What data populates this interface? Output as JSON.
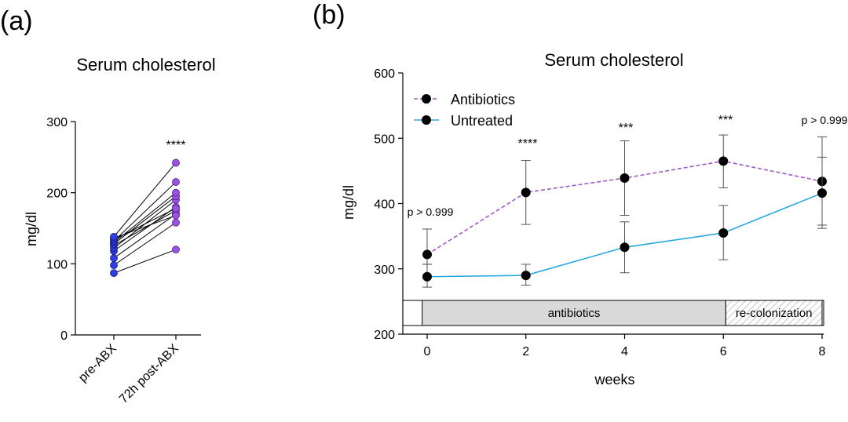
{
  "panels": [
    {
      "label": "(a)",
      "chart_data": {
        "type": "scatter",
        "title": "Serum cholesterol",
        "xlabel": "",
        "ylabel": "mg/dl",
        "categories": [
          "pre-ABX",
          "72h post-ABX"
        ],
        "ylim": [
          0,
          300
        ],
        "yticks": [
          0,
          100,
          200,
          300
        ],
        "paired_values": [
          [
            87,
            120
          ],
          [
            98,
            158
          ],
          [
            108,
            170
          ],
          [
            118,
            180
          ],
          [
            122,
            190
          ],
          [
            126,
            175
          ],
          [
            128,
            195
          ],
          [
            130,
            200
          ],
          [
            132,
            215
          ],
          [
            134,
            178
          ],
          [
            136,
            168
          ],
          [
            138,
            242
          ]
        ],
        "colors": {
          "pre": "#2f3fe0",
          "post": "#9b51e8"
        },
        "annotation": "****",
        "grid": false
      }
    },
    {
      "label": "(b)",
      "chart_data": {
        "type": "line",
        "title": "Serum cholesterol",
        "xlabel": "weeks",
        "ylabel": "mg/dl",
        "x": [
          0,
          2,
          4,
          6,
          8
        ],
        "xlim": [
          -0.4,
          8.1
        ],
        "ylim": [
          200,
          600
        ],
        "xticks": [
          0,
          2,
          4,
          6,
          8
        ],
        "yticks": [
          200,
          300,
          400,
          500,
          600
        ],
        "series": [
          {
            "name": "Antibiotics",
            "values": [
              322,
              417,
              439,
              465,
              434
            ],
            "err_low": [
              307,
              368,
              382,
              424,
              367
            ],
            "err_high": [
              361,
              466,
              496,
              505,
              502
            ],
            "color": "#a259c4",
            "dashed": true
          },
          {
            "name": "Untreated",
            "values": [
              288,
              290,
              333,
              355,
              416
            ],
            "err_low": [
              272,
              275,
              294,
              314,
              362
            ],
            "err_high": [
              307,
              307,
              372,
              397,
              471
            ],
            "color": "#29a8e0",
            "dashed": false
          }
        ],
        "annotations": [
          {
            "x": 0,
            "text": "p > 0.999"
          },
          {
            "x": 2,
            "text": "****"
          },
          {
            "x": 4,
            "text": "***"
          },
          {
            "x": 6,
            "text": "***"
          },
          {
            "x": 8,
            "text": "p > 0.999"
          }
        ],
        "bands": [
          {
            "label": "antibiotics",
            "from": -0.1,
            "to": 6.05,
            "fill": "#d9d9d9"
          },
          {
            "label": "re-colonization",
            "from": 6.05,
            "to": 8.0,
            "fill": "hatched"
          }
        ],
        "legend_position": "top-left",
        "grid": false
      }
    }
  ]
}
